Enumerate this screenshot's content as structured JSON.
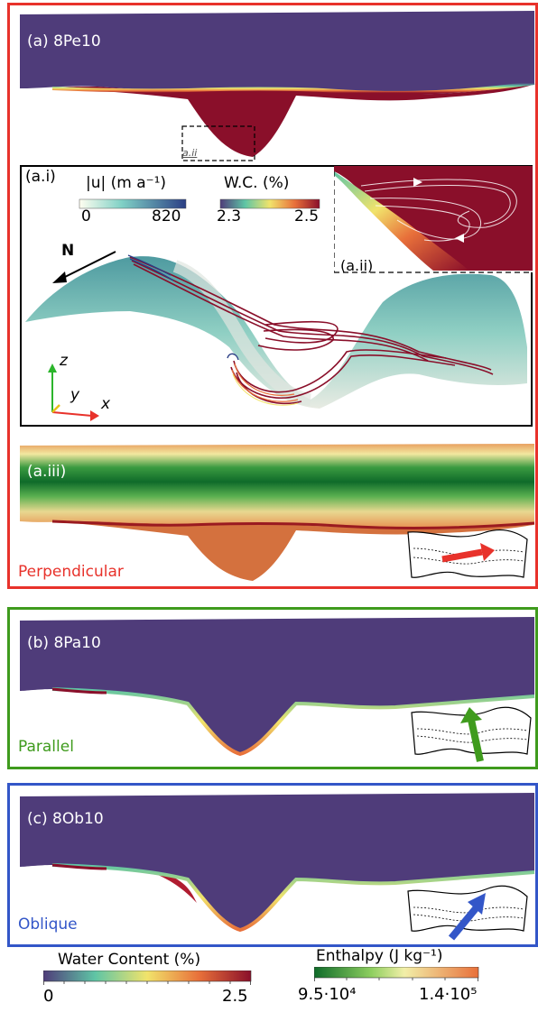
{
  "colors": {
    "perpendicular": "#e8322b",
    "parallel": "#3f9b1d",
    "oblique": "#3356c8",
    "ice_purple": "#4f3c7a"
  },
  "panel_a": {
    "label": "(a) 8Pe10",
    "inset_marker": "a.ii",
    "caption": "Perpendicular",
    "sub_i": {
      "label": "(a.i)",
      "velocity_title": "|u| (m a⁻¹)",
      "velocity_min": "0",
      "velocity_max": "820",
      "wc_title": "W.C. (%)",
      "wc_min": "2.3",
      "wc_max": "2.5",
      "north": "N",
      "axis_z": "z",
      "axis_y": "y",
      "axis_x": "x"
    },
    "sub_ii": {
      "label": "(a.ii)"
    },
    "sub_iii": {
      "label": "(a.iii)"
    }
  },
  "panel_b": {
    "label": "(b) 8Pa10",
    "caption": "Parallel"
  },
  "panel_c": {
    "label": "(c) 8Ob10",
    "caption": "Oblique"
  },
  "legend": {
    "wc_title": "Water Content (%)",
    "wc_min": "0",
    "wc_max": "2.5",
    "enthalpy_title": "Enthalpy (J kg⁻¹)",
    "enthalpy_min": "9.5·10⁴",
    "enthalpy_max": "1.4·10⁵"
  }
}
